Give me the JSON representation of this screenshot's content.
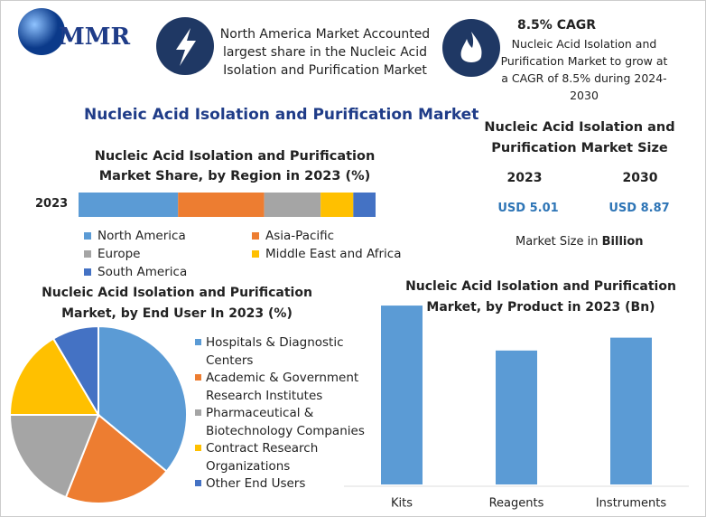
{
  "header": {
    "logo": "MMR",
    "highlight": "North America Market Accounted largest share in the Nucleic Acid Isolation and Purification Market",
    "cagr_title": "8.5% CAGR",
    "cagr_text": "Nucleic Acid Isolation and Purification Market to grow at a CAGR of 8.5% during 2024-2030",
    "title": "Nucleic Acid Isolation and Purification Market"
  },
  "market_size": {
    "title": "Nucleic Acid Isolation and Purification Market Size",
    "years": [
      "2023",
      "2030"
    ],
    "values": [
      "USD 5.01",
      "USD 8.87"
    ],
    "note": "Market Size in",
    "note_unit": "Billion"
  },
  "chart_data": [
    {
      "type": "stacked_bar",
      "title": "Nucleic Acid Isolation and Purification Market Share, by Region in 2023 (%)",
      "categories": [
        "2023"
      ],
      "xlim": [
        0,
        100
      ],
      "series": [
        {
          "name": "North America",
          "color": "#5b9bd5",
          "values": [
            33.5
          ]
        },
        {
          "name": "Asia-Pacific",
          "color": "#ed7d31",
          "values": [
            29
          ]
        },
        {
          "name": "Europe",
          "color": "#a5a5a5",
          "values": [
            19
          ]
        },
        {
          "name": "Middle East and Africa",
          "color": "#ffc000",
          "values": [
            11
          ]
        },
        {
          "name": "South America",
          "color": "#4472c4",
          "values": [
            7.5
          ]
        }
      ]
    },
    {
      "type": "pie",
      "title": "Nucleic Acid Isolation and Purification Market, by End User In 2023 (%)",
      "categories": [
        "Hospitals & Diagnostic Centers",
        "Academic & Government Research Institutes",
        "Pharmaceutical & Biotechnology Companies",
        "Contract Research Organizations",
        "Other End Users"
      ],
      "values": [
        36,
        20,
        19,
        16.5,
        8.5
      ],
      "colors": [
        "#5b9bd5",
        "#ed7d31",
        "#a5a5a5",
        "#ffc000",
        "#4472c4"
      ]
    },
    {
      "type": "bar",
      "title": "Nucleic Acid Isolation and Purification Market, by Product in 2023 (Bn)",
      "categories": [
        "Kits",
        "Reagents",
        "Instruments"
      ],
      "values": [
        1.95,
        1.46,
        1.6
      ],
      "color": "#5b9bd5"
    }
  ]
}
